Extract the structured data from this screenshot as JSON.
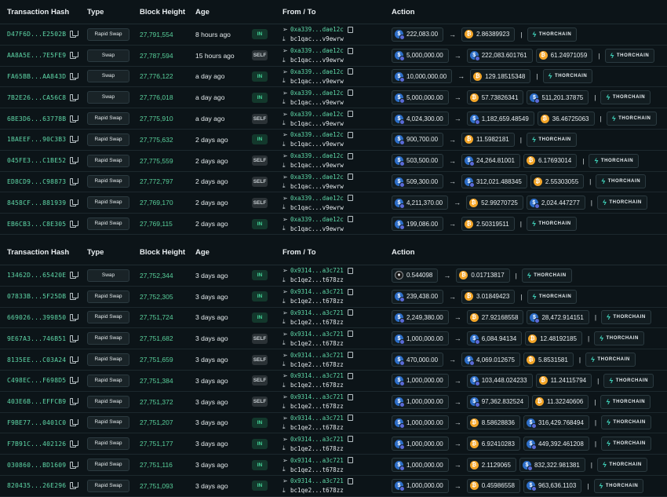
{
  "headers": {
    "hash": "Transaction Hash",
    "type": "Type",
    "block": "Block Height",
    "age": "Age",
    "fromto": "From / To",
    "action": "Action"
  },
  "provider_label": "THORCHAIN",
  "icons": {
    "copy": "copy-icon",
    "send": "send-arrow-icon",
    "receive": "receive-arrow-icon",
    "usdc": "usdc-token-icon",
    "btc": "btc-token-icon",
    "eth": "eth-token-icon",
    "thorchain": "thorchain-logo-icon"
  },
  "colors": {
    "hash": "#5fd8a8",
    "in_badge": "#45d69a",
    "btc": "#f3a528",
    "usdc": "#2d6ec8"
  },
  "tables": [
    {
      "rows": [
        {
          "hash": "D47F6D...E2502B",
          "type": "Rapid Swap",
          "block": "27,791,554",
          "age": "8 hours ago",
          "dir": "IN",
          "from": "0xa339...dae12c",
          "to": "bc1qac...v9ewrw",
          "in": {
            "token": "usdc",
            "amount": "222,083.00"
          },
          "outs": [
            {
              "token": "btc",
              "amount": "2.86389923"
            }
          ]
        },
        {
          "hash": "AA8A5E...7E5FE9",
          "type": "Swap",
          "block": "27,787,594",
          "age": "15 hours ago",
          "dir": "SELF",
          "from": "0xa339...dae12c",
          "to": "bc1qac...v9ewrw",
          "in": {
            "token": "usdc",
            "amount": "5,000,000.00"
          },
          "outs": [
            {
              "token": "usdc",
              "amount": "222,083.601761"
            },
            {
              "token": "btc",
              "amount": "61.24971059"
            }
          ]
        },
        {
          "hash": "FA65BB...AA843D",
          "type": "Swap",
          "block": "27,776,122",
          "age": "a day ago",
          "dir": "IN",
          "from": "0xa339...dae12c",
          "to": "bc1qac...v9ewrw",
          "in": {
            "token": "usdc",
            "amount": "10,000,000.00"
          },
          "outs": [
            {
              "token": "btc",
              "amount": "129.18515348"
            }
          ]
        },
        {
          "hash": "7B2E26...CA56C8",
          "type": "Swap",
          "block": "27,776,018",
          "age": "a day ago",
          "dir": "IN",
          "from": "0xa339...dae12c",
          "to": "bc1qac...v9ewrw",
          "in": {
            "token": "usdc",
            "amount": "5,000,000.00"
          },
          "outs": [
            {
              "token": "btc",
              "amount": "57.73826341"
            },
            {
              "token": "usdc",
              "amount": "511,201.37875"
            }
          ]
        },
        {
          "hash": "6BE3D6...63778B",
          "type": "Rapid Swap",
          "block": "27,775,910",
          "age": "a day ago",
          "dir": "SELF",
          "from": "0xa339...dae12c",
          "to": "bc1qac...v9ewrw",
          "in": {
            "token": "usdc",
            "amount": "4,024,300.00"
          },
          "outs": [
            {
              "token": "usdc",
              "amount": "1,182,659.48549"
            },
            {
              "token": "btc",
              "amount": "36.46725063"
            }
          ]
        },
        {
          "hash": "1BAEEF...90C3B3",
          "type": "Rapid Swap",
          "block": "27,775,632",
          "age": "2 days ago",
          "dir": "IN",
          "from": "0xa339...dae12c",
          "to": "bc1qac...v9ewrw",
          "in": {
            "token": "usdc",
            "amount": "900,700.00"
          },
          "outs": [
            {
              "token": "btc",
              "amount": "11.5982181"
            }
          ]
        },
        {
          "hash": "045FE3...C1BE52",
          "type": "Rapid Swap",
          "block": "27,775,559",
          "age": "2 days ago",
          "dir": "SELF",
          "from": "0xa339...dae12c",
          "to": "bc1qac...v9ewrw",
          "in": {
            "token": "usdc",
            "amount": "503,500.00"
          },
          "outs": [
            {
              "token": "usdc",
              "amount": "24,264.81001"
            },
            {
              "token": "btc",
              "amount": "6.17693014"
            }
          ]
        },
        {
          "hash": "ED8CD9...C98873",
          "type": "Rapid Swap",
          "block": "27,772,797",
          "age": "2 days ago",
          "dir": "SELF",
          "from": "0xa339...dae12c",
          "to": "bc1qac...v9ewrw",
          "in": {
            "token": "usdc",
            "amount": "509,300.00"
          },
          "outs": [
            {
              "token": "usdc",
              "amount": "312,021.488345"
            },
            {
              "token": "btc",
              "amount": "2.55303055"
            }
          ]
        },
        {
          "hash": "8458CF...881939",
          "type": "Rapid Swap",
          "block": "27,769,170",
          "age": "2 days ago",
          "dir": "SELF",
          "from": "0xa339...dae12c",
          "to": "bc1qac...v9ewrw",
          "in": {
            "token": "usdc",
            "amount": "4,211,370.00"
          },
          "outs": [
            {
              "token": "btc",
              "amount": "52.99270725"
            },
            {
              "token": "usdc",
              "amount": "2,024.447277"
            }
          ]
        },
        {
          "hash": "EB6CB3...C8E305",
          "type": "Rapid Swap",
          "block": "27,769,115",
          "age": "2 days ago",
          "dir": "IN",
          "from": "0xa339...dae12c",
          "to": "bc1qac...v9ewrw",
          "in": {
            "token": "usdc",
            "amount": "199,086.00"
          },
          "outs": [
            {
              "token": "btc",
              "amount": "2.50319511"
            }
          ]
        }
      ]
    },
    {
      "rows": [
        {
          "hash": "13462D...65420E",
          "type": "Swap",
          "block": "27,752,344",
          "age": "3 days ago",
          "dir": "IN",
          "from": "0x9314...a3c721",
          "to": "bc1qe2...t678zz",
          "in": {
            "token": "eth",
            "amount": "0.544098"
          },
          "outs": [
            {
              "token": "btc",
              "amount": "0.01713817"
            }
          ]
        },
        {
          "hash": "07833B...5F25DB",
          "type": "Rapid Swap",
          "block": "27,752,305",
          "age": "3 days ago",
          "dir": "IN",
          "from": "0x9314...a3c721",
          "to": "bc1qe2...t678zz",
          "in": {
            "token": "usdc",
            "amount": "239,438.00"
          },
          "outs": [
            {
              "token": "btc",
              "amount": "3.01849423"
            }
          ]
        },
        {
          "hash": "669026...399850",
          "type": "Rapid Swap",
          "block": "27,751,724",
          "age": "3 days ago",
          "dir": "IN",
          "from": "0x9314...a3c721",
          "to": "bc1qe2...t678zz",
          "in": {
            "token": "usdc",
            "amount": "2,249,380.00"
          },
          "outs": [
            {
              "token": "btc",
              "amount": "27.92168558"
            },
            {
              "token": "usdc",
              "amount": "28,472.914151"
            }
          ]
        },
        {
          "hash": "9E67A3...746B51",
          "type": "Rapid Swap",
          "block": "27,751,682",
          "age": "3 days ago",
          "dir": "SELF",
          "from": "0x9314...a3c721",
          "to": "bc1qe2...t678zz",
          "in": {
            "token": "usdc",
            "amount": "1,000,000.00"
          },
          "outs": [
            {
              "token": "usdc",
              "amount": "6,084.94134"
            },
            {
              "token": "btc",
              "amount": "12.48192185"
            }
          ]
        },
        {
          "hash": "8135EE...C03A24",
          "type": "Rapid Swap",
          "block": "27,751,659",
          "age": "3 days ago",
          "dir": "SELF",
          "from": "0x9314...a3c721",
          "to": "bc1qe2...t678zz",
          "in": {
            "token": "usdc",
            "amount": "470,000.00"
          },
          "outs": [
            {
              "token": "usdc",
              "amount": "4,069.012675"
            },
            {
              "token": "btc",
              "amount": "5.8531581"
            }
          ]
        },
        {
          "hash": "C498EC...F698D5",
          "type": "Rapid Swap",
          "block": "27,751,384",
          "age": "3 days ago",
          "dir": "SELF",
          "from": "0x9314...a3c721",
          "to": "bc1qe2...t678zz",
          "in": {
            "token": "usdc",
            "amount": "1,000,000.00"
          },
          "outs": [
            {
              "token": "usdc",
              "amount": "103,448.024233"
            },
            {
              "token": "btc",
              "amount": "11.24115794"
            }
          ]
        },
        {
          "hash": "403E6B...EFFCB9",
          "type": "Rapid Swap",
          "block": "27,751,372",
          "age": "3 days ago",
          "dir": "SELF",
          "from": "0x9314...a3c721",
          "to": "bc1qe2...t678zz",
          "in": {
            "token": "usdc",
            "amount": "1,000,000.00"
          },
          "outs": [
            {
              "token": "usdc",
              "amount": "97,362.832524"
            },
            {
              "token": "btc",
              "amount": "11.32240606"
            }
          ]
        },
        {
          "hash": "F9BE77...0401C0",
          "type": "Rapid Swap",
          "block": "27,751,207",
          "age": "3 days ago",
          "dir": "IN",
          "from": "0x9314...a3c721",
          "to": "bc1qe2...t678zz",
          "in": {
            "token": "usdc",
            "amount": "1,000,000.00"
          },
          "outs": [
            {
              "token": "btc",
              "amount": "8.58628836"
            },
            {
              "token": "usdc",
              "amount": "316,429.768494"
            }
          ]
        },
        {
          "hash": "F7B91C...402126",
          "type": "Rapid Swap",
          "block": "27,751,177",
          "age": "3 days ago",
          "dir": "IN",
          "from": "0x9314...a3c721",
          "to": "bc1qe2...t678zz",
          "in": {
            "token": "usdc",
            "amount": "1,000,000.00"
          },
          "outs": [
            {
              "token": "btc",
              "amount": "6.92410283"
            },
            {
              "token": "usdc",
              "amount": "449,392.461208"
            }
          ]
        },
        {
          "hash": "030860...BD1609",
          "type": "Rapid Swap",
          "block": "27,751,116",
          "age": "3 days ago",
          "dir": "IN",
          "from": "0x9314...a3c721",
          "to": "bc1qe2...t678zz",
          "in": {
            "token": "usdc",
            "amount": "1,000,000.00"
          },
          "outs": [
            {
              "token": "btc",
              "amount": "2.1129065"
            },
            {
              "token": "usdc",
              "amount": "832,322.981381"
            }
          ]
        },
        {
          "hash": "820435...26E296",
          "type": "Rapid Swap",
          "block": "27,751,093",
          "age": "3 days ago",
          "dir": "IN",
          "from": "0x9314...a3c721",
          "to": "bc1qe2...t678zz",
          "in": {
            "token": "usdc",
            "amount": "1,000,000.00"
          },
          "outs": [
            {
              "token": "btc",
              "amount": "0.45986558"
            },
            {
              "token": "usdc",
              "amount": "963,636.1103"
            }
          ]
        }
      ]
    }
  ]
}
